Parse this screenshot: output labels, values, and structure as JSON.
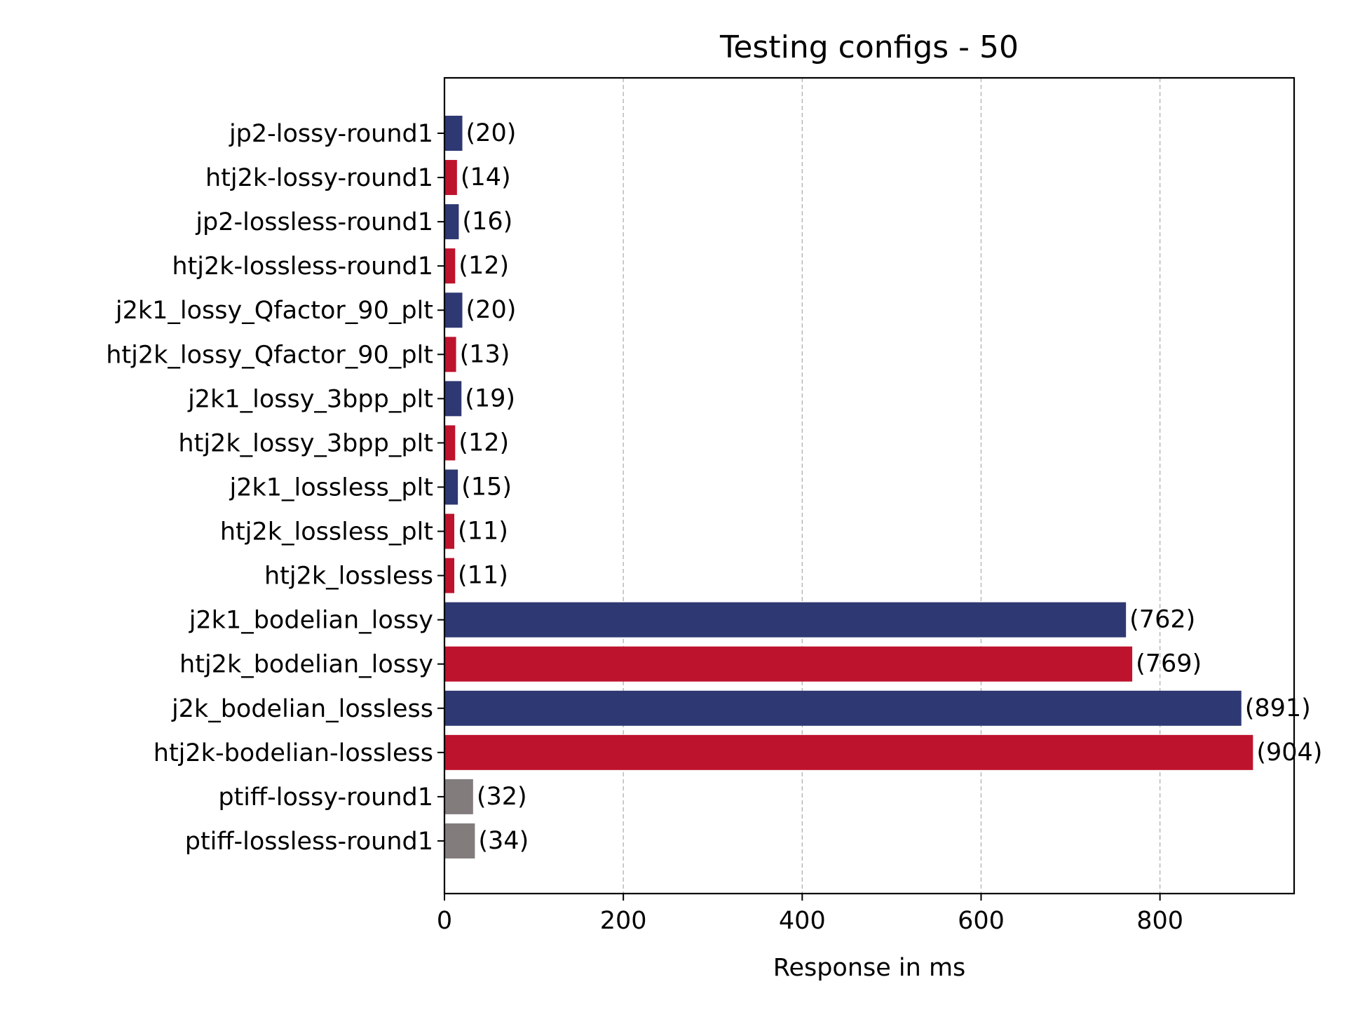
{
  "chart_data": {
    "type": "bar",
    "orientation": "horizontal",
    "title": "Testing configs - 50",
    "xlabel": "Response in ms",
    "ylabel": "",
    "xlim": [
      0,
      950
    ],
    "x_ticks": [
      0,
      200,
      400,
      600,
      800
    ],
    "grid": "vertical dashed",
    "legend": "none",
    "colors": {
      "navy": "#2e3872",
      "crimson": "#be132d",
      "gray": "#827c7c"
    },
    "categories": [
      "jp2-lossy-round1",
      "htj2k-lossy-round1",
      "jp2-lossless-round1",
      "htj2k-lossless-round1",
      "j2k1_lossy_Qfactor_90_plt",
      "htj2k_lossy_Qfactor_90_plt",
      "j2k1_lossy_3bpp_plt",
      "htj2k_lossy_3bpp_plt",
      "j2k1_lossless_plt",
      "htj2k_lossless_plt",
      "htj2k_lossless",
      "j2k1_bodelian_lossy",
      "htj2k_bodelian_lossy",
      "j2k_bodelian_lossless",
      "htj2k-bodelian-lossless",
      "ptiff-lossy-round1",
      "ptiff-lossless-round1"
    ],
    "values": [
      20,
      14,
      16,
      12,
      20,
      13,
      19,
      12,
      15,
      11,
      11,
      762,
      769,
      891,
      904,
      32,
      34
    ],
    "labels": [
      "(20)",
      "(14)",
      "(16)",
      "(12)",
      "(20)",
      "(13)",
      "(19)",
      "(12)",
      "(15)",
      "(11)",
      "(11)",
      "(762)",
      "(769)",
      "(891)",
      "(904)",
      "(32)",
      "(34)"
    ],
    "bar_colors": [
      "navy",
      "crimson",
      "navy",
      "crimson",
      "navy",
      "crimson",
      "navy",
      "crimson",
      "navy",
      "crimson",
      "crimson",
      "navy",
      "crimson",
      "navy",
      "crimson",
      "gray",
      "gray"
    ]
  }
}
